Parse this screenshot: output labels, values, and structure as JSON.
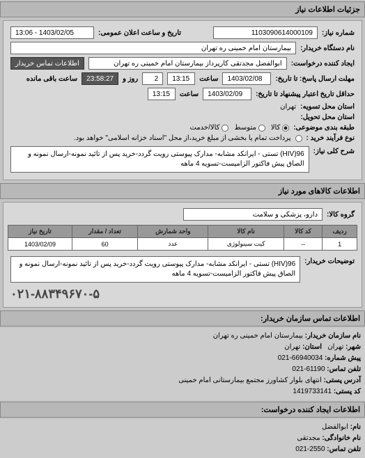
{
  "section_details": "جزئیات اطلاعات نیاز",
  "fields": {
    "req_number_label": "شماره نیاز:",
    "req_number": "1103090614000109",
    "public_date_label": "تاریخ و ساعت اعلان عمومی:",
    "public_date": "13:06 - 1403/02/05",
    "org_name_label": "نام دستگاه خریدار:",
    "org_name": "بیمارستان امام خمینی ره  تهران",
    "requester_label": "ایجاد کننده درخواست:",
    "requester": "ابوالفضل مجدتقی کارپرداز بیمارستان امام خمینی ره  تهران",
    "contact_info_label": "اطلاعات تماس خریدار",
    "reply_deadline_label": "مهلت ارسال پاسخ: تا تاریخ:",
    "reply_date": "1403/02/08",
    "time_label": "ساعت",
    "reply_time": "13:15",
    "days_label": "روز و",
    "days_remain": "2",
    "time_remain": "23:58:27",
    "remain_label": "ساعت باقی مانده",
    "valid_until_label": "حداقل تاریخ اعتبار پیشنهاد تا تاریخ:",
    "valid_date": "1403/02/09",
    "valid_time": "13:15",
    "location_label": "استان محل تسویه:",
    "location": "تهران",
    "delivery_label": "استان محل تحویل:",
    "budget_label": "طبقه بندی موضوعی:",
    "budget_opt_goods": "کالا",
    "budget_opt_both": "کالا/خدمت",
    "budget_opt_medium": "متوسط",
    "purchase_label": "نوع فرآیند خرید :",
    "purchase_note": "پرداخت تمام یا بخشی از مبلغ خرید،از محل \"اسناد خزانه اسلامی\" خواهد بود.",
    "main_desc_label": "شرح کلی نیاز:",
    "main_desc": "HIV)96) تستی - ایرانکد مشابه- مدارک پیوستی رویت گردد-خرید پس از تائید نمونه-ارسال نمونه و الصاق پیش فاکتور الزامیست-تسویه 4 ماهه"
  },
  "goods_section": "اطلاعات کالاهای مورد نیاز",
  "goods_group_label": "گروه کالا:",
  "goods_group": "دارو، پزشکی و سلامت",
  "table": {
    "headers": [
      "ردیف",
      "کد کالا",
      "نام کالا",
      "واحد شمارش",
      "تعداد / مقدار",
      "تاریخ نیاز"
    ],
    "rows": [
      [
        "1",
        "--",
        "کیت سینولوژی",
        "عدد",
        "60",
        "1403/02/09"
      ]
    ]
  },
  "buyer_note_label": "توضیحات خریدار:",
  "buyer_note": "HIV)96) تستی - ایرانکد مشابه- مدارک پیوستی رویت گردد-خرید پس از تائید نمونه-ارسال نمونه و الصاق پیش فاکتور الزامیست-تسویه 4 ماهه",
  "phone_big": "۰۲۱-۸۸۳۴۹۶۷۰-۵",
  "contact_section": "اطلاعات تماس سازمان خریدار:",
  "contact": {
    "org_label": "نام سازمان خریدار:",
    "org": "بیمارستان امام خمینی ره تهران",
    "city_label": "شهر:",
    "city": "تهران",
    "province_label": "استان:",
    "province": "تهران",
    "prefix_label": "پیش شماره:",
    "prefix": "66940034-021",
    "phone_label": "تلفن تماس:",
    "phone": "61190-021",
    "address_label": "آدرس پستی:",
    "address": "انتهای بلوار کشاورز مجتمع بیمارستانی امام خمینی",
    "postal_label": "کد پستی:",
    "postal": "1419733141"
  },
  "creator_section": "اطلاعات ایجاد کننده درخواست:",
  "creator": {
    "name_label": "نام:",
    "name": "ابوالفضل",
    "family_label": "نام خانوادگی:",
    "family": "مجدتقی",
    "phone_label": "تلفن تماس:",
    "phone": "2550-021"
  }
}
